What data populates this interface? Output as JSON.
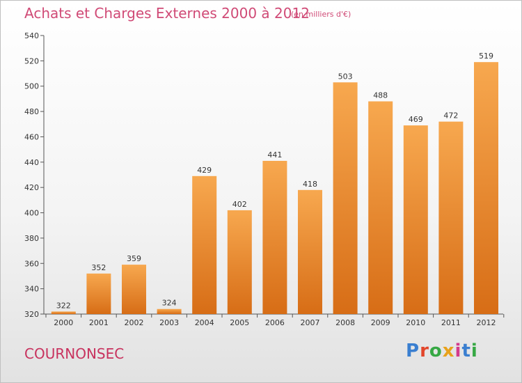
{
  "title": "Achats et Charges Externes 2000 à 2012",
  "subtitle": "(en milliers d'€)",
  "location": "COURNONSEC",
  "logo": {
    "text": "Proxiti",
    "letter_colors": [
      "#3a7fd0",
      "#e2462b",
      "#36a844",
      "#e8a21b",
      "#d43a8c",
      "#3a7fd0",
      "#36a844"
    ]
  },
  "chart_data": {
    "type": "bar",
    "categories": [
      "2000",
      "2001",
      "2002",
      "2003",
      "2004",
      "2005",
      "2006",
      "2007",
      "2008",
      "2009",
      "2010",
      "2011",
      "2012"
    ],
    "values": [
      322,
      352,
      359,
      324,
      429,
      402,
      441,
      418,
      503,
      488,
      469,
      472,
      519
    ],
    "ylim": [
      320,
      540
    ],
    "yticks": [
      320,
      340,
      360,
      380,
      400,
      420,
      440,
      460,
      480,
      500,
      520,
      540
    ],
    "xlabel": "",
    "ylabel": "",
    "bar_color_top": "#f7a84f",
    "bar_color_bottom": "#d76d16",
    "grid": false
  }
}
